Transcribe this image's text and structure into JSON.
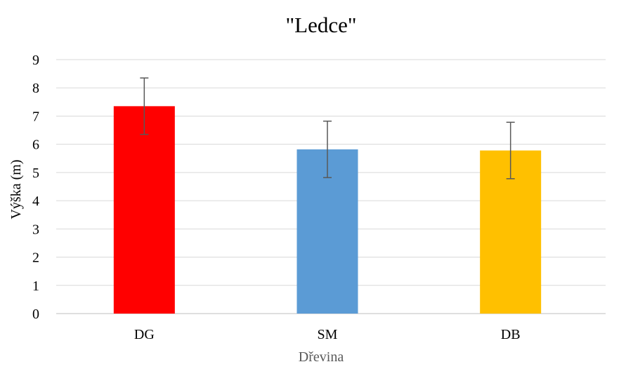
{
  "chart_data": {
    "type": "bar",
    "title": "\"Ledce\"",
    "xlabel": "Dřevina",
    "ylabel": "Výška (m)",
    "categories": [
      "DG",
      "SM",
      "DB"
    ],
    "values": [
      7.35,
      5.82,
      5.78
    ],
    "error": [
      1.0,
      1.0,
      1.0
    ],
    "colors": [
      "#FF0000",
      "#5B9BD5",
      "#FFC000"
    ],
    "ylim": [
      0,
      9
    ],
    "yticks": [
      "0",
      "1",
      "2",
      "3",
      "4",
      "5",
      "6",
      "7",
      "8",
      "9"
    ],
    "grid": true,
    "legend": "none"
  }
}
